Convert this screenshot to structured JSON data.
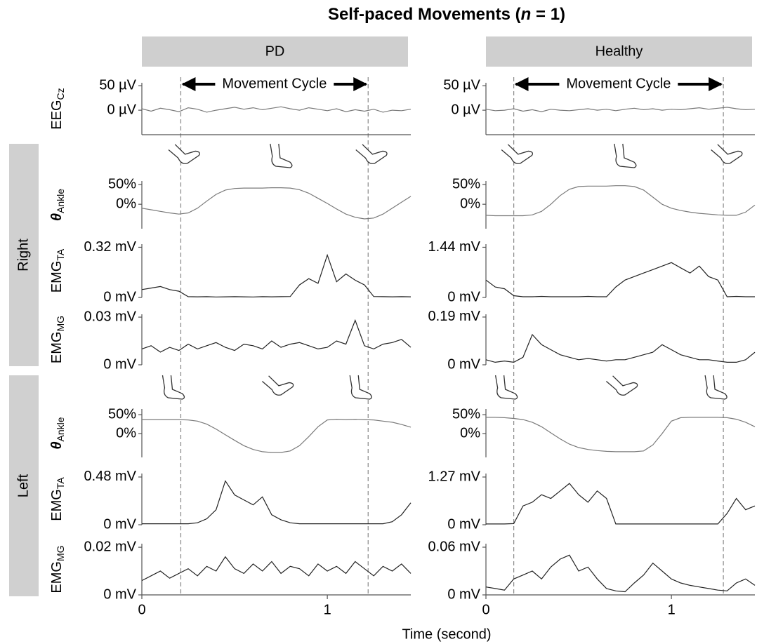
{
  "title": {
    "text": "Self-paced Movements (",
    "var": "n",
    "rest": " = 1)"
  },
  "columns": [
    {
      "label": "PD",
      "cycle": [
        0.21,
        1.22
      ]
    },
    {
      "label": "Healthy",
      "cycle": [
        0.15,
        1.28
      ]
    }
  ],
  "cycle_label": "Movement Cycle",
  "sides": [
    "Right",
    "Left"
  ],
  "rows": [
    {
      "label": "EEG",
      "sub": "Cz"
    },
    {
      "label": "θ",
      "sub": "Ankle"
    },
    {
      "label": "EMG",
      "sub": "TA"
    },
    {
      "label": "EMG",
      "sub": "MG"
    },
    {
      "label": "θ",
      "sub": "Ankle"
    },
    {
      "label": "EMG",
      "sub": "TA"
    },
    {
      "label": "EMG",
      "sub": "MG"
    }
  ],
  "x": [
    0,
    0.05,
    0.1,
    0.15,
    0.2,
    0.25,
    0.3,
    0.35,
    0.4,
    0.45,
    0.5,
    0.55,
    0.6,
    0.65,
    0.7,
    0.75,
    0.8,
    0.85,
    0.9,
    0.95,
    1,
    1.05,
    1.1,
    1.15,
    1.2,
    1.25,
    1.3,
    1.35,
    1.4,
    1.45
  ],
  "xlim": [
    0,
    1.45
  ],
  "xticks": [
    0,
    1
  ],
  "xlabel": "Time (second)",
  "chart_data": [
    {
      "type": "line",
      "color": "#7a7a7a",
      "ylim": [
        -50,
        56
      ],
      "yticks": [
        {
          "value": 50,
          "label": "50 µV"
        },
        {
          "value": 0,
          "label": "0 µV"
        }
      ],
      "values": [
        3,
        -2,
        4,
        1,
        -3,
        5,
        2,
        -4,
        0,
        3,
        6,
        2,
        5,
        1,
        4,
        7,
        3,
        0,
        5,
        2,
        -1,
        3,
        -3,
        1,
        -2,
        2,
        -4,
        0,
        -1,
        2
      ]
    },
    {
      "type": "line",
      "color": "#7a7a7a",
      "ylim": [
        -62,
        59
      ],
      "yticks": [
        {
          "value": 50,
          "label": "50%"
        },
        {
          "value": 0,
          "label": "0%"
        }
      ],
      "values": [
        -10,
        -14,
        -18,
        -22,
        -25,
        -22,
        -10,
        8,
        25,
        36,
        40,
        41,
        41,
        41,
        42,
        42,
        41,
        37,
        28,
        15,
        2,
        -12,
        -25,
        -33,
        -37,
        -35,
        -25,
        -10,
        5,
        20
      ]
    },
    {
      "type": "line",
      "color": "#222222",
      "ylim": [
        0,
        0.34
      ],
      "yticks": [
        {
          "value": 0.32,
          "label": "0.32 mV"
        },
        {
          "value": 0,
          "label": "0 mV"
        }
      ],
      "values": [
        0.05,
        0.06,
        0.07,
        0.05,
        0.04,
        0.005,
        0.004,
        0.005,
        0.003,
        0.004,
        0.005,
        0.004,
        0.003,
        0.005,
        0.004,
        0.005,
        0.006,
        0.08,
        0.12,
        0.09,
        0.27,
        0.1,
        0.15,
        0.11,
        0.08,
        0.006,
        0.005,
        0.004,
        0.005,
        0.004
      ]
    },
    {
      "type": "line",
      "color": "#222222",
      "ylim": [
        0,
        0.0318
      ],
      "yticks": [
        {
          "value": 0.03,
          "label": "0.03 mV"
        },
        {
          "value": 0,
          "label": "0 mV"
        }
      ],
      "values": [
        0.01,
        0.012,
        0.008,
        0.011,
        0.009,
        0.013,
        0.01,
        0.012,
        0.014,
        0.011,
        0.009,
        0.013,
        0.012,
        0.01,
        0.015,
        0.011,
        0.013,
        0.014,
        0.012,
        0.01,
        0.011,
        0.015,
        0.013,
        0.028,
        0.012,
        0.01,
        0.013,
        0.014,
        0.016,
        0.011
      ]
    },
    {
      "type": "line",
      "color": "#7a7a7a",
      "ylim": [
        -63,
        65
      ],
      "yticks": [
        {
          "value": 50,
          "label": "50%"
        },
        {
          "value": 0,
          "label": "0%"
        }
      ],
      "values": [
        37,
        37,
        37,
        37,
        37,
        36,
        33,
        25,
        12,
        -3,
        -18,
        -32,
        -42,
        -48,
        -50,
        -50,
        -46,
        -32,
        -8,
        18,
        36,
        38,
        37,
        38,
        37,
        36,
        33,
        30,
        24,
        17
      ]
    },
    {
      "type": "line",
      "color": "#222222",
      "ylim": [
        0,
        0.515
      ],
      "yticks": [
        {
          "value": 0.48,
          "label": "0.48 mV"
        },
        {
          "value": 0,
          "label": "0 mV"
        }
      ],
      "values": [
        0.01,
        0.01,
        0.01,
        0.01,
        0.01,
        0.01,
        0.02,
        0.06,
        0.15,
        0.44,
        0.3,
        0.25,
        0.2,
        0.28,
        0.1,
        0.05,
        0.02,
        0.01,
        0.01,
        0.01,
        0.01,
        0.01,
        0.01,
        0.01,
        0.01,
        0.01,
        0.01,
        0.03,
        0.1,
        0.22
      ]
    },
    {
      "type": "line",
      "color": "#222222",
      "ylim": [
        0,
        0.0215
      ],
      "yticks": [
        {
          "value": 0.02,
          "label": "0.02 mV"
        },
        {
          "value": 0,
          "label": "0 mV"
        }
      ],
      "values": [
        0.006,
        0.008,
        0.01,
        0.007,
        0.009,
        0.011,
        0.008,
        0.012,
        0.01,
        0.016,
        0.011,
        0.009,
        0.013,
        0.01,
        0.014,
        0.009,
        0.012,
        0.011,
        0.008,
        0.013,
        0.01,
        0.012,
        0.009,
        0.014,
        0.011,
        0.008,
        0.012,
        0.01,
        0.013,
        0.009
      ]
    },
    {
      "type": "line",
      "color": "#7a7a7a",
      "ylim": [
        -50,
        56
      ],
      "yticks": [
        {
          "value": 50,
          "label": "50 µV"
        },
        {
          "value": 0,
          "label": "0 µV"
        }
      ],
      "values": [
        2,
        -1,
        0,
        3,
        -2,
        1,
        -3,
        2,
        0,
        -1,
        1,
        3,
        0,
        2,
        -1,
        2,
        4,
        1,
        3,
        0,
        2,
        1,
        3,
        5,
        2,
        4,
        6,
        3,
        1,
        2
      ]
    },
    {
      "type": "line",
      "color": "#7a7a7a",
      "ylim": [
        -62,
        59
      ],
      "yticks": [
        {
          "value": 50,
          "label": "50%"
        },
        {
          "value": 0,
          "label": "0%"
        }
      ],
      "values": [
        -28,
        -29,
        -29,
        -29,
        -29,
        -27,
        -18,
        0,
        22,
        38,
        45,
        46,
        46,
        46,
        47,
        47,
        45,
        36,
        18,
        0,
        -10,
        -16,
        -20,
        -23,
        -25,
        -27,
        -28,
        -28,
        -20,
        -2
      ]
    },
    {
      "type": "line",
      "color": "#222222",
      "ylim": [
        0,
        1.53
      ],
      "yticks": [
        {
          "value": 1.44,
          "label": "1.44 mV"
        },
        {
          "value": 0,
          "label": "0 mV"
        }
      ],
      "values": [
        0.5,
        0.3,
        0.25,
        0.05,
        0.02,
        0.02,
        0.03,
        0.02,
        0.02,
        0.02,
        0.02,
        0.03,
        0.02,
        0.02,
        0.3,
        0.5,
        0.6,
        0.7,
        0.8,
        0.9,
        1.0,
        0.85,
        0.7,
        0.9,
        0.6,
        0.5,
        0.02,
        0.03,
        0.02,
        0.02
      ]
    },
    {
      "type": "line",
      "color": "#222222",
      "ylim": [
        0,
        0.201
      ],
      "yticks": [
        {
          "value": 0.19,
          "label": "0.19 mV"
        },
        {
          "value": 0,
          "label": "0 mV"
        }
      ],
      "values": [
        0.02,
        0.01,
        0.015,
        0.01,
        0.03,
        0.12,
        0.08,
        0.06,
        0.04,
        0.03,
        0.02,
        0.025,
        0.02,
        0.015,
        0.02,
        0.02,
        0.03,
        0.04,
        0.05,
        0.08,
        0.06,
        0.04,
        0.03,
        0.02,
        0.02,
        0.015,
        0.01,
        0.01,
        0.02,
        0.05
      ]
    },
    {
      "type": "line",
      "color": "#7a7a7a",
      "ylim": [
        -63,
        65
      ],
      "yticks": [
        {
          "value": 50,
          "label": "50%"
        },
        {
          "value": 0,
          "label": "0%"
        }
      ],
      "values": [
        43,
        43,
        42,
        40,
        37,
        30,
        18,
        2,
        -14,
        -28,
        -37,
        -42,
        -45,
        -47,
        -48,
        -48,
        -48,
        -46,
        -30,
        0,
        33,
        42,
        43,
        43,
        43,
        43,
        42,
        38,
        30,
        18
      ]
    },
    {
      "type": "line",
      "color": "#222222",
      "ylim": [
        0,
        1.363
      ],
      "yticks": [
        {
          "value": 1.27,
          "label": "1.27 mV"
        },
        {
          "value": 0,
          "label": "0 mV"
        }
      ],
      "values": [
        0.02,
        0.02,
        0.02,
        0.03,
        0.5,
        0.6,
        0.8,
        0.7,
        0.9,
        1.1,
        0.8,
        0.6,
        0.9,
        0.7,
        0.02,
        0.02,
        0.02,
        0.02,
        0.02,
        0.02,
        0.02,
        0.02,
        0.02,
        0.02,
        0.02,
        0.02,
        0.3,
        0.7,
        0.4,
        0.5
      ]
    },
    {
      "type": "line",
      "color": "#222222",
      "ylim": [
        0,
        0.0644
      ],
      "yticks": [
        {
          "value": 0.06,
          "label": "0.06 mV"
        },
        {
          "value": 0,
          "label": "0 mV"
        }
      ],
      "values": [
        0.01,
        0.008,
        0.006,
        0.02,
        0.025,
        0.03,
        0.02,
        0.035,
        0.045,
        0.05,
        0.03,
        0.035,
        0.02,
        0.008,
        0.005,
        0.004,
        0.015,
        0.025,
        0.04,
        0.03,
        0.02,
        0.015,
        0.012,
        0.01,
        0.008,
        0.006,
        0.005,
        0.015,
        0.02,
        0.012
      ]
    }
  ]
}
